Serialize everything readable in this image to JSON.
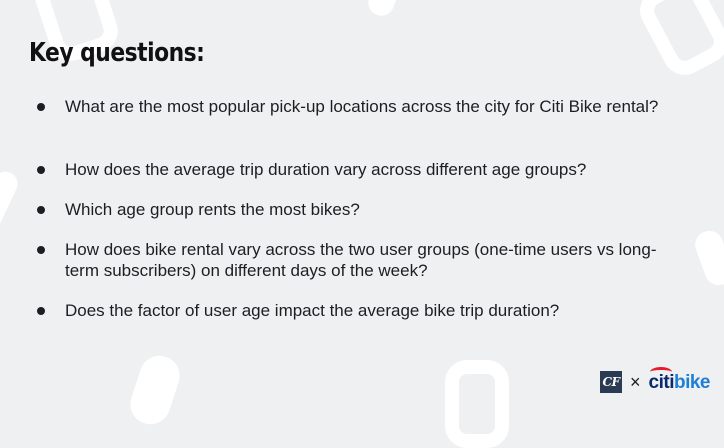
{
  "slide": {
    "title": "Key questions:",
    "questions": [
      "What are the most popular pick-up locations across the city for Citi Bike rental?",
      "How does the average trip duration vary across different age groups?",
      "Which age group rents the most bikes?",
      "How does bike rental vary across the two user groups (one-time users vs long-term subscribers) on different days of the week?",
      "Does the factor of user age impact the average bike trip duration?"
    ]
  },
  "footer": {
    "cf_logo_text": "CF",
    "times_symbol": "×",
    "citibike_citi": "citi",
    "citibike_bike": "bike"
  },
  "colors": {
    "background": "#eff0f2",
    "text": "#1e1e22",
    "cf_badge": "#2a3a52",
    "citi_blue": "#0b2a6b",
    "bike_blue": "#1f7fd6",
    "citi_arc_red": "#e31d2b"
  }
}
